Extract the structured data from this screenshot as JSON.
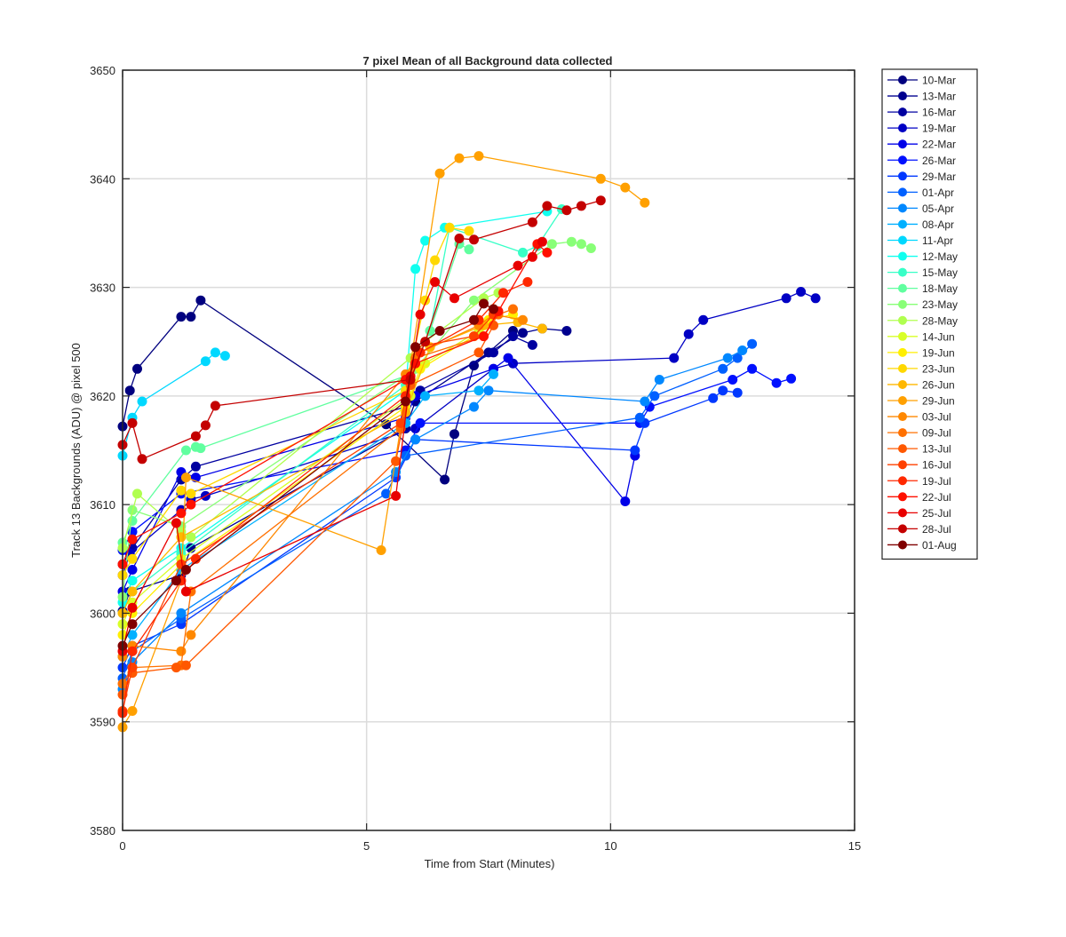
{
  "chart_data": {
    "type": "line",
    "title": "7 pixel Mean of all Background data collected",
    "xlabel": "Time from Start (Minutes)",
    "ylabel": "Track 13 Backgrounds (ADU) @ pixel 500",
    "xlim": [
      0,
      15
    ],
    "ylim": [
      3580,
      3650
    ],
    "xticks": [
      "0",
      "5",
      "10",
      "15"
    ],
    "yticks": [
      "3580",
      "3590",
      "3600",
      "3610",
      "3620",
      "3630",
      "3640",
      "3650"
    ],
    "grid": true,
    "legend_position": "outside-right-top",
    "series": [
      {
        "name": "10-Mar",
        "color": "#00007f",
        "x": [
          0.0,
          0.15,
          0.3,
          1.2,
          1.4,
          1.6,
          5.4,
          6.6,
          6.8,
          7.2,
          8.0
        ],
        "y": [
          3617.2,
          3620.5,
          3622.5,
          3627.3,
          3627.3,
          3628.8,
          3617.4,
          3612.3,
          3616.5,
          3622.8,
          3626.0
        ]
      },
      {
        "name": "13-Mar",
        "color": "#00008f",
        "x": [
          0.0,
          0.15,
          1.2,
          1.4,
          5.8,
          6.0,
          7.5,
          8.2,
          8.6,
          9.1
        ],
        "y": [
          3600.2,
          3602.0,
          3603.5,
          3606.0,
          3617.0,
          3619.5,
          3624.0,
          3625.8,
          3626.2,
          3626.0
        ]
      },
      {
        "name": "16-Mar",
        "color": "#0000a0",
        "x": [
          0.0,
          0.2,
          1.2,
          1.5,
          5.8,
          6.1,
          7.6,
          8.0,
          8.4
        ],
        "y": [
          3604.5,
          3606.0,
          3612.3,
          3613.5,
          3619.0,
          3620.5,
          3624.0,
          3625.5,
          3624.7
        ]
      },
      {
        "name": "19-Mar",
        "color": "#0000c4",
        "x": [
          0.0,
          0.15,
          1.2,
          1.4,
          1.7,
          6.0,
          7.6,
          8.0,
          11.3,
          11.6,
          11.9,
          13.6,
          13.9,
          14.2
        ],
        "y": [
          3603.5,
          3605.5,
          3609.5,
          3610.5,
          3610.8,
          3617.0,
          3622.5,
          3623.0,
          3623.5,
          3625.7,
          3627.0,
          3629.0,
          3629.6,
          3629.0
        ]
      },
      {
        "name": "22-Mar",
        "color": "#0000e8",
        "x": [
          0.0,
          0.2,
          1.2,
          1.5,
          5.8,
          6.0,
          7.6,
          7.9,
          10.3,
          10.5
        ],
        "y": [
          3602.0,
          3604.0,
          3613.0,
          3612.5,
          3618.0,
          3620.0,
          3622.5,
          3623.5,
          3610.3,
          3614.5
        ]
      },
      {
        "name": "26-Mar",
        "color": "#0010ff",
        "x": [
          0.0,
          0.2,
          1.2,
          5.8,
          6.1,
          10.6,
          10.8,
          12.5,
          12.9,
          13.4,
          13.7
        ],
        "y": [
          3605.8,
          3607.5,
          3611.0,
          3615.0,
          3617.5,
          3617.5,
          3619.0,
          3621.5,
          3622.5,
          3621.2,
          3621.6
        ]
      },
      {
        "name": "29-Mar",
        "color": "#0038ff",
        "x": [
          0.0,
          0.2,
          1.2,
          5.6,
          6.0,
          10.5,
          10.7,
          12.1,
          12.3,
          12.6
        ],
        "y": [
          3595.0,
          3597.0,
          3599.0,
          3612.5,
          3616.0,
          3615.0,
          3617.5,
          3619.8,
          3620.5,
          3620.3
        ]
      },
      {
        "name": "01-Apr",
        "color": "#0060ff",
        "x": [
          0.0,
          0.2,
          1.2,
          5.4,
          5.8,
          10.6,
          10.9,
          12.3,
          12.6,
          12.9
        ],
        "y": [
          3594.0,
          3596.5,
          3599.5,
          3611.0,
          3614.5,
          3618.0,
          3620.0,
          3622.5,
          3623.5,
          3624.8
        ]
      },
      {
        "name": "05-Apr",
        "color": "#0088ff",
        "x": [
          0.0,
          0.2,
          1.2,
          5.6,
          6.0,
          7.2,
          7.5,
          10.7,
          11.0,
          12.4,
          12.7
        ],
        "y": [
          3593.0,
          3595.5,
          3600.0,
          3613.0,
          3616.0,
          3619.0,
          3620.5,
          3619.5,
          3621.5,
          3623.5,
          3624.2
        ]
      },
      {
        "name": "08-Apr",
        "color": "#00b0ff",
        "x": [
          0.0,
          0.2,
          1.2,
          5.8,
          6.2,
          7.3,
          7.6
        ],
        "y": [
          3596.0,
          3598.0,
          3604.0,
          3617.5,
          3620.0,
          3620.5,
          3622.0
        ]
      },
      {
        "name": "11-Apr",
        "color": "#00d8ff",
        "x": [
          0.0,
          0.2,
          0.4,
          1.7,
          1.9,
          2.1
        ],
        "y": [
          3614.5,
          3618.0,
          3619.5,
          3623.2,
          3624.0,
          3623.7
        ]
      },
      {
        "name": "12-May",
        "color": "#10ffef",
        "x": [
          0.0,
          0.2,
          1.2,
          5.8,
          6.0,
          6.2,
          6.6,
          8.7
        ],
        "y": [
          3601.0,
          3603.0,
          3606.0,
          3620.5,
          3631.7,
          3634.3,
          3635.5,
          3637.0
        ]
      },
      {
        "name": "15-May",
        "color": "#38ffc7",
        "x": [
          0.0,
          0.2,
          1.2,
          5.8,
          6.3,
          6.7,
          8.2,
          8.5,
          9.0
        ],
        "y": [
          3600.0,
          3602.0,
          3605.5,
          3621.0,
          3626.0,
          3635.5,
          3633.2,
          3633.8,
          3637.2
        ]
      },
      {
        "name": "18-May",
        "color": "#60ff9f",
        "x": [
          0.0,
          0.2,
          1.3,
          1.5,
          1.6,
          5.9,
          6.3,
          6.9,
          7.1
        ],
        "y": [
          3606.5,
          3608.5,
          3615.0,
          3615.3,
          3615.2,
          3622.0,
          3626.0,
          3634.0,
          3633.5
        ]
      },
      {
        "name": "23-May",
        "color": "#88ff77",
        "x": [
          0.0,
          0.2,
          1.2,
          6.0,
          7.2,
          8.8,
          9.2,
          9.4,
          9.6
        ],
        "y": [
          3601.5,
          3609.5,
          3608.0,
          3622.5,
          3628.8,
          3634.0,
          3634.2,
          3634.0,
          3633.6
        ]
      },
      {
        "name": "28-May",
        "color": "#b0ff4f",
        "x": [
          0.0,
          0.3,
          1.2,
          1.4,
          5.9,
          6.2,
          7.4,
          7.7
        ],
        "y": [
          3606.0,
          3611.0,
          3607.5,
          3607.0,
          3623.5,
          3625.0,
          3629.0,
          3629.5
        ]
      },
      {
        "name": "14-Jun",
        "color": "#d8ff27",
        "x": [
          0.0,
          0.2,
          1.2,
          5.9,
          6.2,
          7.3,
          7.6
        ],
        "y": [
          3599.0,
          3601.0,
          3605.0,
          3620.0,
          3623.0,
          3626.0,
          3628.0
        ]
      },
      {
        "name": "19-Jun",
        "color": "#ffef00",
        "x": [
          0.0,
          0.2,
          1.2,
          5.8,
          6.1,
          7.2,
          7.5,
          8.0
        ],
        "y": [
          3598.0,
          3600.0,
          3604.5,
          3619.0,
          3622.5,
          3625.5,
          3627.0,
          3627.5
        ]
      },
      {
        "name": "23-Jun",
        "color": "#ffd800",
        "x": [
          0.0,
          0.2,
          1.2,
          1.4,
          5.8,
          6.2,
          6.4,
          6.7,
          7.1
        ],
        "y": [
          3603.5,
          3605.0,
          3611.3,
          3611.0,
          3620.5,
          3628.8,
          3632.5,
          3635.5,
          3635.2
        ]
      },
      {
        "name": "26-Jun",
        "color": "#ffb800",
        "x": [
          0.0,
          0.2,
          1.2,
          5.8,
          6.3,
          7.4,
          8.1,
          8.6
        ],
        "y": [
          3600.0,
          3602.0,
          3607.0,
          3618.5,
          3624.5,
          3626.5,
          3626.8,
          3626.2
        ]
      },
      {
        "name": "29-Jun",
        "color": "#ffa000",
        "x": [
          0.0,
          0.2,
          1.2,
          1.3,
          5.3,
          5.8,
          6.5,
          6.9,
          7.3,
          9.8,
          10.3,
          10.7
        ],
        "y": [
          3589.5,
          3591.0,
          3603.0,
          3612.5,
          3605.8,
          3620.0,
          3640.5,
          3641.9,
          3642.1,
          3640.0,
          3639.2,
          3637.8
        ]
      },
      {
        "name": "03-Jul",
        "color": "#ff8800",
        "x": [
          0.0,
          0.2,
          1.2,
          1.4,
          5.8,
          6.1,
          7.3,
          7.6,
          8.2
        ],
        "y": [
          3596.0,
          3597.0,
          3596.5,
          3598.0,
          3622.0,
          3624.0,
          3626.5,
          3627.5,
          3627.0
        ]
      },
      {
        "name": "09-Jul",
        "color": "#ff7000",
        "x": [
          0.0,
          0.2,
          1.2,
          1.4,
          5.7,
          6.0,
          7.4,
          7.7,
          8.0
        ],
        "y": [
          3593.5,
          3595.0,
          3595.2,
          3602.0,
          3617.0,
          3623.5,
          3625.5,
          3627.5,
          3628.0
        ]
      },
      {
        "name": "13-Jul",
        "color": "#ff5800",
        "x": [
          0.0,
          0.2,
          1.1,
          1.3,
          5.6,
          5.9,
          7.3,
          7.6
        ],
        "y": [
          3592.5,
          3594.5,
          3595.0,
          3595.2,
          3614.0,
          3621.0,
          3624.0,
          3626.5
        ]
      },
      {
        "name": "16-Jul",
        "color": "#ff4000",
        "x": [
          0.0,
          0.2,
          1.2,
          5.7,
          6.0,
          7.2,
          7.6
        ],
        "y": [
          3591.0,
          3595.0,
          3604.5,
          3617.5,
          3624.5,
          3625.5,
          3627.5
        ]
      },
      {
        "name": "19-Jul",
        "color": "#ff2800",
        "x": [
          0.0,
          0.2,
          1.2,
          1.5,
          5.8,
          6.1,
          7.3,
          7.8,
          8.3
        ],
        "y": [
          3590.8,
          3596.5,
          3603.0,
          3605.0,
          3620.0,
          3624.0,
          3627.0,
          3629.5,
          3630.5
        ]
      },
      {
        "name": "22-Jul",
        "color": "#ff1000",
        "x": [
          0.0,
          0.2,
          1.2,
          1.4,
          5.8,
          6.0,
          7.4,
          7.7,
          8.5,
          8.7
        ],
        "y": [
          3604.5,
          3606.8,
          3609.2,
          3610.0,
          3621.5,
          3623.0,
          3625.5,
          3627.8,
          3634.0,
          3633.2
        ]
      },
      {
        "name": "25-Jul",
        "color": "#e80000",
        "x": [
          0.0,
          0.2,
          1.1,
          1.3,
          5.6,
          5.9,
          6.1,
          6.4,
          6.8,
          8.1,
          8.4,
          8.6
        ],
        "y": [
          3596.5,
          3600.5,
          3608.3,
          3602.0,
          3610.8,
          3621.8,
          3627.5,
          3630.5,
          3629.0,
          3632.0,
          3632.8,
          3634.2
        ]
      },
      {
        "name": "28-Jul",
        "color": "#c40000",
        "x": [
          0.0,
          0.2,
          0.4,
          1.5,
          1.7,
          1.9,
          5.9,
          6.2,
          6.9,
          7.2,
          8.4,
          8.7,
          9.1,
          9.4,
          9.8
        ],
        "y": [
          3615.5,
          3617.5,
          3614.2,
          3616.3,
          3617.3,
          3619.1,
          3621.5,
          3625.0,
          3634.5,
          3634.4,
          3636.0,
          3637.5,
          3637.1,
          3637.5,
          3638.0
        ]
      },
      {
        "name": "01-Aug",
        "color": "#800000",
        "x": [
          0.0,
          0.2,
          1.1,
          1.3,
          5.8,
          6.0,
          6.5,
          7.2,
          7.4,
          7.6
        ],
        "y": [
          3597.0,
          3599.0,
          3603.0,
          3604.0,
          3619.5,
          3624.5,
          3626.0,
          3627.0,
          3628.5,
          3628.0
        ]
      }
    ]
  }
}
